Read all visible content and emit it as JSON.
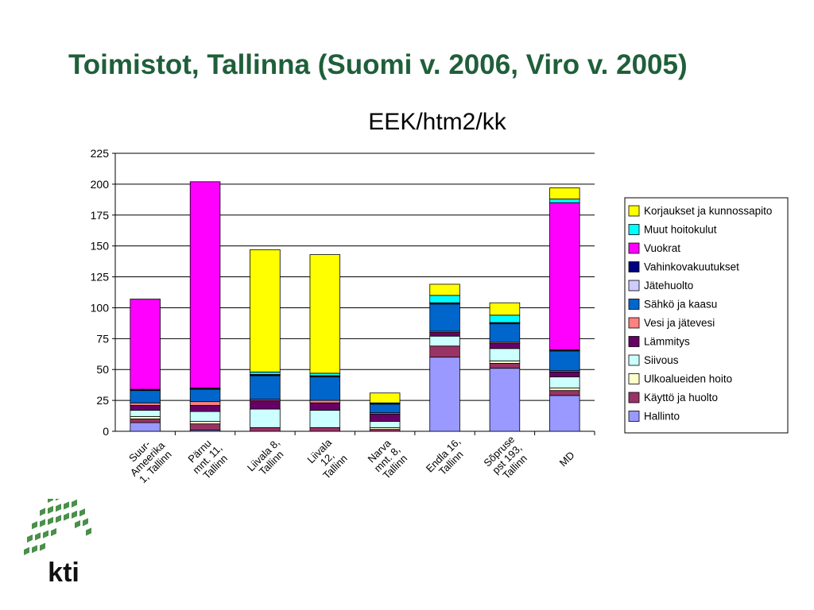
{
  "slide": {
    "title": "Toimistot, Tallinna (Suomi v. 2006, Viro v. 2005)",
    "logo_text": "kti"
  },
  "chart_data": {
    "type": "bar",
    "stacked": true,
    "title": "EEK/htm2/kk",
    "xlabel": "",
    "ylabel": "",
    "ylim": [
      0,
      225
    ],
    "yticks": [
      0,
      25,
      50,
      75,
      100,
      125,
      150,
      175,
      200,
      225
    ],
    "grid": true,
    "legend_position": "right",
    "categories": [
      [
        "Suur-",
        "Ameerika",
        "1, Tallinn"
      ],
      [
        "Pärnu",
        "mnt. 11,",
        "Tallinn"
      ],
      [
        "Liivala 8,",
        "Tallinn"
      ],
      [
        "Liivala",
        "12,",
        "Tallinn"
      ],
      [
        "Narva",
        "mnt. 8,",
        "Tallinn"
      ],
      [
        "Endla 16,",
        "Tallinn"
      ],
      [
        "Sõpruse",
        "pst 193,",
        "Tallinn"
      ],
      [
        "MD"
      ]
    ],
    "series": [
      {
        "name": "Hallinto",
        "color": "#9999ff",
        "values": [
          7,
          1,
          0,
          0,
          0,
          60,
          51,
          29
        ]
      },
      {
        "name": "Käyttö ja huolto",
        "color": "#993366",
        "values": [
          3,
          5,
          3,
          3,
          1.5,
          9,
          4,
          4
        ]
      },
      {
        "name": "Ulkoalueiden hoito",
        "color": "#ffffcc",
        "values": [
          2,
          2,
          0,
          0,
          1.5,
          0,
          2,
          2
        ]
      },
      {
        "name": "Siivous",
        "color": "#ccffff",
        "values": [
          5,
          8,
          15,
          14,
          5,
          8,
          10,
          9
        ]
      },
      {
        "name": "Lämmitys",
        "color": "#660066",
        "values": [
          4,
          5,
          7,
          6,
          6,
          3,
          4,
          4
        ]
      },
      {
        "name": "Vesi ja jätevesi",
        "color": "#ff8080",
        "values": [
          2,
          3,
          1,
          2,
          1,
          1,
          1,
          1
        ]
      },
      {
        "name": "Sähkö ja kaasu",
        "color": "#0066cc",
        "values": [
          10,
          10,
          19,
          19,
          7,
          22,
          15,
          16
        ]
      },
      {
        "name": "Jätehuolto",
        "color": "#ccccff",
        "values": [
          0.5,
          0.5,
          0.5,
          0.5,
          0.5,
          0.5,
          0.5,
          0.5
        ]
      },
      {
        "name": "Vahinkovakuutukset",
        "color": "#000080",
        "values": [
          0.5,
          0.5,
          0.5,
          0.5,
          0.5,
          0.5,
          0.5,
          0.5
        ]
      },
      {
        "name": "Vuokrat",
        "color": "#ff00ff",
        "values": [
          73,
          167,
          0,
          0,
          0,
          0,
          0,
          119
        ]
      },
      {
        "name": "Muut hoitokulut",
        "color": "#00ffff",
        "values": [
          0,
          0,
          2,
          2,
          0,
          6,
          6,
          3
        ]
      },
      {
        "name": "Korjaukset ja kunnossapito",
        "color": "#ffff00",
        "values": [
          0,
          0,
          99,
          96,
          8,
          9,
          10,
          9
        ]
      }
    ]
  }
}
